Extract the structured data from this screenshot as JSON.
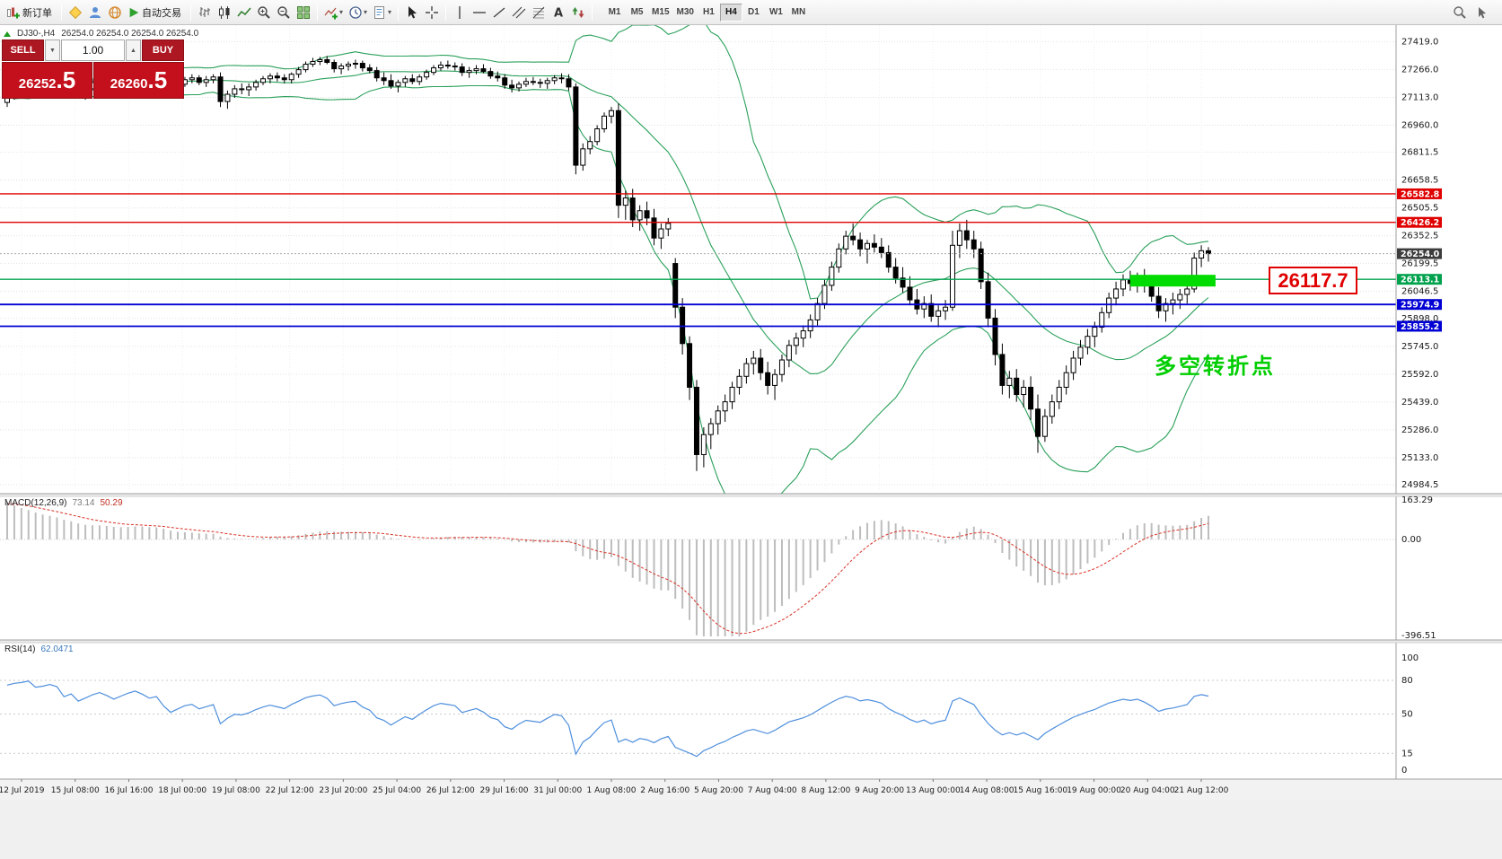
{
  "tool_bar": {
    "new_order": "新订单",
    "autotrading": "自动交易",
    "timeframes": [
      "M1",
      "M5",
      "M15",
      "M30",
      "H1",
      "H4",
      "D1",
      "W1",
      "MN"
    ],
    "active_timeframe": "H4",
    "icons": [
      "new-order-icon",
      "metaeditor-icon",
      "market-icon",
      "community-icon",
      "autotrading-icon",
      "bar-chart-icon",
      "candlestick-chart-icon",
      "line-chart-icon",
      "zoom-in-icon",
      "zoom-out-icon",
      "tile-windows-icon",
      "indicators-icon",
      "periods-icon",
      "templates-icon",
      "cursor-icon",
      "crosshair-icon",
      "vertical-line-icon",
      "horizontal-line-icon",
      "trendline-icon",
      "channel-icon",
      "fibonacci-icon",
      "text-icon",
      "arrows-icon",
      "search-icon",
      "pointer-icon"
    ]
  },
  "chart": {
    "title": "DJ30-,H4",
    "ohlc": "26254.0 26254.0 26254.0 26254.0",
    "symbol": "DJ30-",
    "period": "H4"
  },
  "trade_panel": {
    "sell_label": "SELL",
    "buy_label": "BUY",
    "volume": "1.00",
    "volume_down_glyph": "▼",
    "volume_up_glyph": "▲",
    "sell_price_main": "26252",
    "sell_price_frac": ".5",
    "buy_price_main": "26260",
    "buy_price_frac": ".5"
  },
  "price_scale": [
    "27419.0",
    "27266.0",
    "27113.0",
    "26960.0",
    "26811.5",
    "26658.5",
    "26505.5",
    "26352.5",
    "26199.5",
    "26046.5",
    "25898.0",
    "25745.0",
    "25592.0",
    "25439.0",
    "25286.0",
    "25133.0",
    "24984.5"
  ],
  "price_lines": [
    {
      "label": "26582.8",
      "price": 26582.8,
      "color_key": "line_red"
    },
    {
      "label": "26426.2",
      "price": 26426.2,
      "color_key": "line_red"
    },
    {
      "label": "26254.0",
      "price": 26254.0,
      "color_key": "current_tag",
      "style": "current"
    },
    {
      "label": "26113.1",
      "price": 26113.1,
      "color_key": "line_green"
    },
    {
      "label": "25974.9",
      "price": 25974.9,
      "color_key": "line_blue"
    },
    {
      "label": "25855.2",
      "price": 25855.2,
      "color_key": "line_blue"
    }
  ],
  "annotations": {
    "price_callout": "26117.7",
    "turning_point": "多空转折点",
    "highlight": {
      "price": 26113.1,
      "from_bar": 158,
      "to_bar": 170
    }
  },
  "macd_panel": {
    "name": "MACD(12,26,9)",
    "main_value": "73.14",
    "signal_value": "50.29",
    "scale": [
      "163.29",
      "0.00",
      "-396.51"
    ]
  },
  "rsi_panel": {
    "name": "RSI(14)",
    "value": "62.0471",
    "scale": [
      "100",
      "80",
      "50",
      "15",
      "0"
    ],
    "levels": [
      80,
      50,
      15
    ]
  },
  "time_axis": [
    "12 Jul 2019",
    "15 Jul 08:00",
    "16 Jul 16:00",
    "18 Jul 00:00",
    "19 Jul 08:00",
    "22 Jul 12:00",
    "23 Jul 20:00",
    "25 Jul 04:00",
    "26 Jul 12:00",
    "29 Jul 16:00",
    "31 Jul 00:00",
    "1 Aug 08:00",
    "2 Aug 16:00",
    "5 Aug 20:00",
    "7 Aug 04:00",
    "8 Aug 12:00",
    "9 Aug 20:00",
    "13 Aug 00:00",
    "14 Aug 08:00",
    "15 Aug 16:00",
    "19 Aug 00:00",
    "20 Aug 04:00",
    "21 Aug 12:00"
  ],
  "colors": {
    "line_red": "#e00000",
    "line_green": "#00a24d",
    "line_blue": "#0000d4",
    "current_tag": "#3c3c3c",
    "band_green": "#2aa05a",
    "macd_silver": "#bdbdbd",
    "macd_signal": "#d93025",
    "rsi_blue": "#4f8fdd",
    "highlight_green": "#00dc00",
    "callout_red": "#e00000",
    "annotation_green": "#00ce00",
    "panel_red": "#b5121b"
  },
  "chart_data": {
    "type": "candlestick",
    "symbol": "DJ30-",
    "timeframe": "H4",
    "price_range": [
      24984.5,
      27419.0
    ],
    "ohlc": [
      [
        27085,
        27130,
        27060,
        27120
      ],
      [
        27120,
        27160,
        27100,
        27150
      ],
      [
        27150,
        27180,
        27130,
        27165
      ],
      [
        27165,
        27200,
        27150,
        27190
      ],
      [
        27190,
        27210,
        27140,
        27160
      ],
      [
        27160,
        27190,
        27130,
        27175
      ],
      [
        27175,
        27215,
        27160,
        27200
      ],
      [
        27200,
        27230,
        27180,
        27190
      ],
      [
        27190,
        27200,
        27120,
        27140
      ],
      [
        27140,
        27180,
        27125,
        27170
      ],
      [
        27170,
        27200,
        27110,
        27130
      ],
      [
        27130,
        27170,
        27100,
        27160
      ],
      [
        27160,
        27210,
        27150,
        27195
      ],
      [
        27195,
        27240,
        27180,
        27220
      ],
      [
        27220,
        27250,
        27190,
        27205
      ],
      [
        27205,
        27230,
        27170,
        27185
      ],
      [
        27185,
        27230,
        27160,
        27215
      ],
      [
        27215,
        27260,
        27200,
        27245
      ],
      [
        27245,
        27290,
        27230,
        27270
      ],
      [
        27270,
        27300,
        27240,
        27255
      ],
      [
        27255,
        27280,
        27220,
        27235
      ],
      [
        27235,
        27260,
        27210,
        27250
      ],
      [
        27250,
        27265,
        27180,
        27200
      ],
      [
        27200,
        27220,
        27140,
        27160
      ],
      [
        27160,
        27200,
        27130,
        27185
      ],
      [
        27185,
        27225,
        27170,
        27210
      ],
      [
        27210,
        27240,
        27190,
        27220
      ],
      [
        27220,
        27235,
        27180,
        27195
      ],
      [
        27195,
        27230,
        27170,
        27210
      ],
      [
        27210,
        27240,
        27190,
        27225
      ],
      [
        27225,
        27250,
        27060,
        27090
      ],
      [
        27090,
        27150,
        27050,
        27130
      ],
      [
        27130,
        27180,
        27110,
        27160
      ],
      [
        27160,
        27190,
        27130,
        27155
      ],
      [
        27155,
        27190,
        27120,
        27170
      ],
      [
        27170,
        27210,
        27150,
        27195
      ],
      [
        27195,
        27230,
        27180,
        27215
      ],
      [
        27215,
        27245,
        27190,
        27230
      ],
      [
        27230,
        27250,
        27200,
        27220
      ],
      [
        27220,
        27240,
        27190,
        27210
      ],
      [
        27210,
        27250,
        27190,
        27240
      ],
      [
        27240,
        27280,
        27220,
        27265
      ],
      [
        27265,
        27310,
        27250,
        27295
      ],
      [
        27295,
        27330,
        27280,
        27310
      ],
      [
        27310,
        27335,
        27290,
        27320
      ],
      [
        27320,
        27340,
        27295,
        27305
      ],
      [
        27305,
        27320,
        27250,
        27270
      ],
      [
        27270,
        27300,
        27240,
        27285
      ],
      [
        27285,
        27310,
        27260,
        27295
      ],
      [
        27295,
        27320,
        27270,
        27300
      ],
      [
        27300,
        27315,
        27255,
        27275
      ],
      [
        27275,
        27295,
        27245,
        27260
      ],
      [
        27260,
        27280,
        27200,
        27220
      ],
      [
        27220,
        27250,
        27180,
        27205
      ],
      [
        27205,
        27240,
        27160,
        27175
      ],
      [
        27175,
        27210,
        27140,
        27195
      ],
      [
        27195,
        27230,
        27170,
        27215
      ],
      [
        27215,
        27240,
        27185,
        27200
      ],
      [
        27200,
        27240,
        27180,
        27225
      ],
      [
        27225,
        27265,
        27210,
        27250
      ],
      [
        27250,
        27290,
        27235,
        27275
      ],
      [
        27275,
        27310,
        27260,
        27290
      ],
      [
        27290,
        27315,
        27270,
        27285
      ],
      [
        27285,
        27305,
        27260,
        27280
      ],
      [
        27280,
        27300,
        27230,
        27250
      ],
      [
        27250,
        27280,
        27220,
        27260
      ],
      [
        27260,
        27290,
        27240,
        27270
      ],
      [
        27270,
        27295,
        27245,
        27255
      ],
      [
        27255,
        27275,
        27215,
        27230
      ],
      [
        27230,
        27255,
        27200,
        27220
      ],
      [
        27220,
        27240,
        27160,
        27180
      ],
      [
        27180,
        27210,
        27140,
        27165
      ],
      [
        27165,
        27200,
        27145,
        27185
      ],
      [
        27185,
        27220,
        27170,
        27200
      ],
      [
        27200,
        27225,
        27180,
        27195
      ],
      [
        27195,
        27215,
        27165,
        27190
      ],
      [
        27190,
        27220,
        27160,
        27205
      ],
      [
        27205,
        27235,
        27185,
        27220
      ],
      [
        27220,
        27245,
        27190,
        27215
      ],
      [
        27215,
        27240,
        27150,
        27170
      ],
      [
        27170,
        27190,
        26690,
        26740
      ],
      [
        26740,
        26860,
        26710,
        26830
      ],
      [
        26830,
        26900,
        26800,
        26870
      ],
      [
        26870,
        26960,
        26850,
        26940
      ],
      [
        26940,
        27030,
        26920,
        27010
      ],
      [
        27010,
        27060,
        26970,
        27040
      ],
      [
        27040,
        27080,
        26450,
        26520
      ],
      [
        26520,
        26600,
        26440,
        26560
      ],
      [
        26560,
        26610,
        26400,
        26440
      ],
      [
        26440,
        26520,
        26380,
        26490
      ],
      [
        26490,
        26540,
        26410,
        26450
      ],
      [
        26450,
        26500,
        26300,
        26340
      ],
      [
        26340,
        26420,
        26280,
        26390
      ],
      [
        26390,
        26450,
        26350,
        26420
      ],
      [
        26200,
        26230,
        25900,
        25960
      ],
      [
        25960,
        26010,
        25700,
        25760
      ],
      [
        25760,
        25800,
        25450,
        25520
      ],
      [
        25520,
        25560,
        25060,
        25150
      ],
      [
        25150,
        25300,
        25080,
        25260
      ],
      [
        25260,
        25350,
        25180,
        25320
      ],
      [
        25320,
        25420,
        25260,
        25390
      ],
      [
        25390,
        25480,
        25330,
        25440
      ],
      [
        25440,
        25550,
        25400,
        25520
      ],
      [
        25520,
        25620,
        25480,
        25580
      ],
      [
        25580,
        25680,
        25540,
        25650
      ],
      [
        25650,
        25720,
        25590,
        25680
      ],
      [
        25680,
        25730,
        25560,
        25600
      ],
      [
        25600,
        25660,
        25480,
        25530
      ],
      [
        25530,
        25620,
        25450,
        25590
      ],
      [
        25590,
        25700,
        25550,
        25670
      ],
      [
        25670,
        25780,
        25630,
        25750
      ],
      [
        25750,
        25820,
        25700,
        25790
      ],
      [
        25790,
        25860,
        25740,
        25830
      ],
      [
        25830,
        25920,
        25790,
        25890
      ],
      [
        25890,
        26010,
        25860,
        25980
      ],
      [
        25980,
        26110,
        25950,
        26080
      ],
      [
        26080,
        26210,
        26050,
        26180
      ],
      [
        26180,
        26310,
        26150,
        26280
      ],
      [
        26280,
        26380,
        26250,
        26350
      ],
      [
        26350,
        26420,
        26300,
        26330
      ],
      [
        26330,
        26370,
        26240,
        26280
      ],
      [
        26280,
        26330,
        26200,
        26310
      ],
      [
        26310,
        26360,
        26260,
        26290
      ],
      [
        26290,
        26340,
        26230,
        26260
      ],
      [
        26260,
        26300,
        26150,
        26180
      ],
      [
        26180,
        26230,
        26090,
        26120
      ],
      [
        26120,
        26180,
        26040,
        26070
      ],
      [
        26070,
        26130,
        25970,
        26000
      ],
      [
        26000,
        26060,
        25920,
        25950
      ],
      [
        25950,
        26020,
        25900,
        25980
      ],
      [
        25980,
        26030,
        25880,
        25910
      ],
      [
        25910,
        25970,
        25850,
        25940
      ],
      [
        25940,
        26000,
        25890,
        25960
      ],
      [
        25960,
        26380,
        25940,
        26300
      ],
      [
        26300,
        26420,
        26230,
        26380
      ],
      [
        26380,
        26440,
        26280,
        26330
      ],
      [
        26330,
        26380,
        26230,
        26280
      ],
      [
        26280,
        26320,
        26060,
        26100
      ],
      [
        26100,
        26150,
        25850,
        25900
      ],
      [
        25900,
        25950,
        25640,
        25700
      ],
      [
        25700,
        25760,
        25480,
        25530
      ],
      [
        25530,
        25610,
        25460,
        25570
      ],
      [
        25570,
        25620,
        25440,
        25480
      ],
      [
        25480,
        25560,
        25410,
        25520
      ],
      [
        25520,
        25580,
        25340,
        25400
      ],
      [
        25400,
        25480,
        25160,
        25250
      ],
      [
        25250,
        25400,
        25220,
        25360
      ],
      [
        25360,
        25480,
        25320,
        25440
      ],
      [
        25440,
        25560,
        25400,
        25520
      ],
      [
        25520,
        25640,
        25480,
        25600
      ],
      [
        25600,
        25720,
        25560,
        25680
      ],
      [
        25680,
        25780,
        25640,
        25740
      ],
      [
        25740,
        25840,
        25700,
        25800
      ],
      [
        25800,
        25880,
        25740,
        25850
      ],
      [
        25850,
        25960,
        25820,
        25930
      ],
      [
        25930,
        26040,
        25900,
        26010
      ],
      [
        26010,
        26100,
        25970,
        26060
      ],
      [
        26060,
        26140,
        26020,
        26110
      ],
      [
        26110,
        26160,
        26050,
        26090
      ],
      [
        26090,
        26150,
        26040,
        26120
      ],
      [
        26120,
        26170,
        26040,
        26080
      ],
      [
        26080,
        26130,
        25990,
        26020
      ],
      [
        26020,
        26070,
        25900,
        25940
      ],
      [
        25940,
        26010,
        25880,
        25980
      ],
      [
        25980,
        26040,
        25920,
        26000
      ],
      [
        26000,
        26060,
        25950,
        26030
      ],
      [
        26030,
        26090,
        25980,
        26060
      ],
      [
        26060,
        26260,
        26040,
        26230
      ],
      [
        26230,
        26300,
        26180,
        26270
      ],
      [
        26270,
        26290,
        26210,
        26254
      ]
    ]
  }
}
